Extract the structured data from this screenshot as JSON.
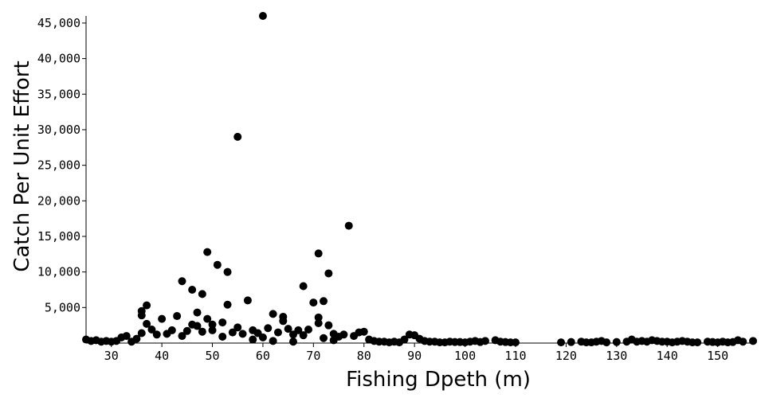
{
  "chart_data": {
    "type": "scatter",
    "title": "",
    "xlabel": "Fishing Dpeth (m)",
    "ylabel": "Catch Per Unit Effort",
    "xlim": [
      25,
      157
    ],
    "ylim": [
      0,
      46000
    ],
    "x_ticks": [
      30,
      40,
      50,
      60,
      70,
      80,
      90,
      100,
      110,
      120,
      130,
      140,
      150
    ],
    "x_tick_labels": [
      "30",
      "40",
      "50",
      "60",
      "70",
      "80",
      "90",
      "100",
      "110",
      "120",
      "130",
      "140",
      "150"
    ],
    "y_ticks": [
      5000,
      10000,
      15000,
      20000,
      25000,
      30000,
      35000,
      40000,
      45000
    ],
    "y_tick_labels": [
      "5,000",
      "10,000",
      "15,000",
      "20,000",
      "25,000",
      "30,000",
      "35,000",
      "40,000",
      "45,000"
    ],
    "grid": false,
    "legend": "none",
    "point_color": "#000000",
    "series": [
      {
        "x": [
          60,
          55,
          77,
          49,
          71,
          51,
          53,
          73,
          44,
          68,
          46,
          48,
          57,
          72,
          70,
          53,
          37,
          36,
          62,
          47,
          64,
          71,
          40,
          43,
          49,
          36,
          64,
          52,
          71,
          47,
          50,
          37,
          46,
          55,
          65,
          58,
          61,
          69,
          73,
          79,
          38,
          42,
          45,
          33,
          48,
          50,
          54,
          56,
          59,
          63,
          66,
          67,
          74,
          76,
          78,
          80,
          81,
          89,
          90,
          36,
          39,
          41,
          44,
          52,
          60,
          68,
          72,
          75,
          32,
          35,
          88,
          91,
          25,
          26,
          27,
          28,
          29,
          30,
          31,
          34,
          82,
          83,
          85,
          86,
          87,
          92,
          93,
          95,
          96,
          97,
          99,
          100,
          101,
          102,
          103,
          106,
          107,
          108,
          109,
          110,
          119,
          121,
          123,
          124,
          126,
          127,
          128,
          130,
          133,
          134,
          135,
          136,
          137,
          138,
          139,
          141,
          142,
          143,
          144,
          145,
          148,
          149,
          150,
          151,
          152,
          154,
          155,
          157,
          58,
          62,
          66,
          74,
          84,
          94,
          98,
          104,
          125,
          132,
          140,
          146,
          153
        ],
        "y": [
          46000,
          29000,
          16500,
          12800,
          12600,
          11000,
          10000,
          9800,
          8700,
          8000,
          7500,
          6900,
          6000,
          5900,
          5700,
          5400,
          5300,
          4500,
          4100,
          4300,
          3700,
          3600,
          3400,
          3800,
          3400,
          3900,
          3100,
          2900,
          2800,
          2400,
          2600,
          2700,
          2600,
          2200,
          2000,
          1800,
          2100,
          1900,
          2500,
          1500,
          1900,
          1800,
          1700,
          1000,
          1600,
          1800,
          1500,
          1300,
          1400,
          1500,
          1200,
          1800,
          1300,
          1200,
          1000,
          1600,
          500,
          1200,
          1100,
          1400,
          1200,
          1300,
          1000,
          900,
          800,
          1100,
          700,
          900,
          800,
          600,
          500,
          600,
          500,
          300,
          400,
          200,
          300,
          200,
          300,
          200,
          300,
          200,
          100,
          200,
          100,
          300,
          200,
          100,
          100,
          200,
          150,
          100,
          200,
          300,
          150,
          400,
          200,
          150,
          100,
          100,
          100,
          150,
          200,
          100,
          200,
          300,
          100,
          150,
          500,
          200,
          300,
          200,
          400,
          300,
          200,
          100,
          200,
          300,
          200,
          100,
          200,
          150,
          100,
          200,
          100,
          400,
          200,
          300,
          500,
          300,
          200,
          400,
          200,
          200,
          150,
          300,
          100,
          200,
          200,
          100,
          150
        ]
      }
    ]
  }
}
